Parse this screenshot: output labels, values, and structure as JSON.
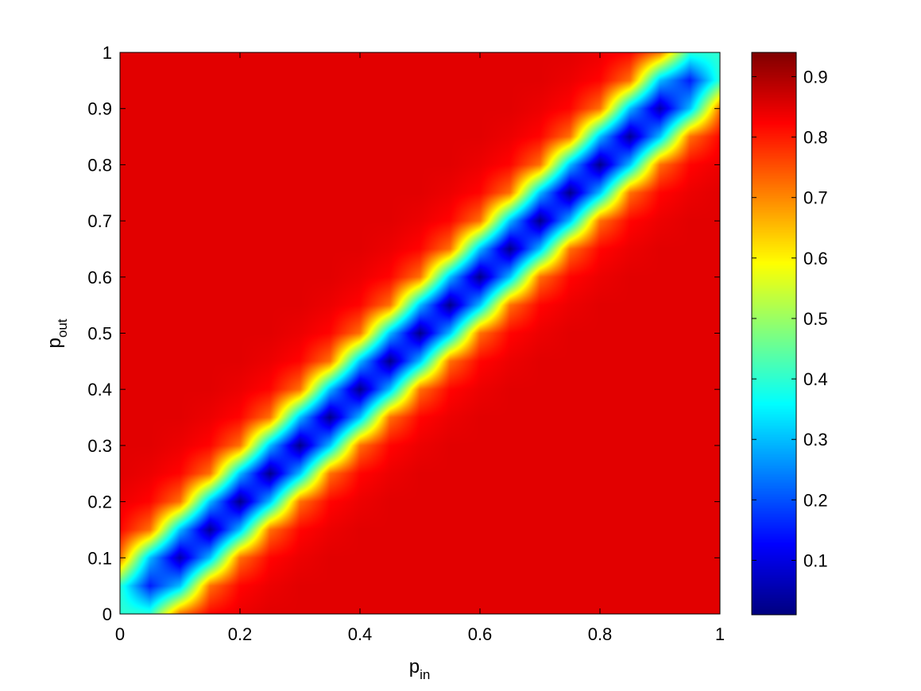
{
  "chart_data": {
    "type": "heatmap",
    "title": "",
    "xlabel": "p",
    "xlabel_sub": "in",
    "ylabel": "p",
    "ylabel_sub": "out",
    "xlim": [
      0,
      1
    ],
    "ylim": [
      0,
      1
    ],
    "x_ticks": [
      0,
      0.2,
      0.4,
      0.6,
      0.8,
      1
    ],
    "x_tick_labels": [
      "0",
      "0.2",
      "0.4",
      "0.6",
      "0.8",
      "1"
    ],
    "y_ticks": [
      0,
      0.1,
      0.2,
      0.3,
      0.4,
      0.5,
      0.6,
      0.7,
      0.8,
      0.9,
      1
    ],
    "y_tick_labels": [
      "0",
      "0.1",
      "0.2",
      "0.3",
      "0.4",
      "0.5",
      "0.6",
      "0.7",
      "0.8",
      "0.9",
      "1"
    ],
    "colormap": "jet",
    "colorbar": {
      "range": [
        0.01,
        0.94
      ],
      "ticks": [
        0.1,
        0.2,
        0.3,
        0.4,
        0.5,
        0.6,
        0.7,
        0.8,
        0.9
      ],
      "tick_labels": [
        "0.1",
        "0.2",
        "0.3",
        "0.4",
        "0.5",
        "0.6",
        "0.7",
        "0.8",
        "0.9"
      ]
    },
    "grid": false,
    "z_description": "approx. 0.85 away from the diagonal p_in = p_out, dropping to about 0.02 along the diagonal; about 0.4 at the corners (0,0) and (1,1)",
    "grid_x": [
      0,
      0.05,
      0.1,
      0.15,
      0.2,
      0.25,
      0.3,
      0.35,
      0.4,
      0.45,
      0.5,
      0.55,
      0.6,
      0.65,
      0.7,
      0.75,
      0.8,
      0.85,
      0.9,
      0.95,
      1
    ],
    "grid_y": [
      0,
      0.05,
      0.1,
      0.15,
      0.2,
      0.25,
      0.3,
      0.35,
      0.4,
      0.45,
      0.5,
      0.55,
      0.6,
      0.65,
      0.7,
      0.75,
      0.8,
      0.85,
      0.9,
      0.95,
      1
    ],
    "z_rows_by_y": [
      [
        0.4,
        0.4,
        0.72,
        0.82,
        0.84,
        0.85,
        0.85,
        0.85,
        0.85,
        0.85,
        0.85,
        0.85,
        0.85,
        0.85,
        0.85,
        0.85,
        0.85,
        0.85,
        0.85,
        0.85,
        0.85
      ],
      [
        0.4,
        0.15,
        0.3,
        0.72,
        0.82,
        0.84,
        0.85,
        0.85,
        0.85,
        0.85,
        0.85,
        0.85,
        0.85,
        0.85,
        0.85,
        0.85,
        0.85,
        0.85,
        0.85,
        0.85,
        0.85
      ],
      [
        0.72,
        0.3,
        0.05,
        0.3,
        0.72,
        0.82,
        0.84,
        0.85,
        0.85,
        0.85,
        0.85,
        0.85,
        0.85,
        0.85,
        0.85,
        0.85,
        0.85,
        0.85,
        0.85,
        0.85,
        0.85
      ],
      [
        0.82,
        0.72,
        0.3,
        0.03,
        0.3,
        0.72,
        0.82,
        0.84,
        0.85,
        0.85,
        0.85,
        0.85,
        0.85,
        0.85,
        0.85,
        0.85,
        0.85,
        0.85,
        0.85,
        0.85,
        0.85
      ],
      [
        0.84,
        0.82,
        0.72,
        0.3,
        0.02,
        0.3,
        0.72,
        0.82,
        0.84,
        0.85,
        0.85,
        0.85,
        0.85,
        0.85,
        0.85,
        0.85,
        0.85,
        0.85,
        0.85,
        0.85,
        0.85
      ],
      [
        0.85,
        0.84,
        0.82,
        0.72,
        0.3,
        0.02,
        0.3,
        0.72,
        0.82,
        0.84,
        0.85,
        0.85,
        0.85,
        0.85,
        0.85,
        0.85,
        0.85,
        0.85,
        0.85,
        0.85,
        0.85
      ],
      [
        0.85,
        0.85,
        0.84,
        0.82,
        0.72,
        0.3,
        0.02,
        0.3,
        0.72,
        0.82,
        0.84,
        0.85,
        0.85,
        0.85,
        0.85,
        0.85,
        0.85,
        0.85,
        0.85,
        0.85,
        0.85
      ],
      [
        0.85,
        0.85,
        0.85,
        0.84,
        0.82,
        0.72,
        0.3,
        0.02,
        0.3,
        0.72,
        0.82,
        0.84,
        0.85,
        0.85,
        0.85,
        0.85,
        0.85,
        0.85,
        0.85,
        0.85,
        0.85
      ],
      [
        0.85,
        0.85,
        0.85,
        0.85,
        0.84,
        0.82,
        0.72,
        0.3,
        0.02,
        0.3,
        0.72,
        0.82,
        0.84,
        0.85,
        0.85,
        0.85,
        0.85,
        0.85,
        0.85,
        0.85,
        0.85
      ],
      [
        0.85,
        0.85,
        0.85,
        0.85,
        0.85,
        0.84,
        0.82,
        0.72,
        0.3,
        0.02,
        0.3,
        0.72,
        0.82,
        0.84,
        0.85,
        0.85,
        0.85,
        0.85,
        0.85,
        0.85,
        0.85
      ],
      [
        0.85,
        0.85,
        0.85,
        0.85,
        0.85,
        0.85,
        0.84,
        0.82,
        0.72,
        0.3,
        0.02,
        0.3,
        0.72,
        0.82,
        0.84,
        0.85,
        0.85,
        0.85,
        0.85,
        0.85,
        0.85
      ],
      [
        0.85,
        0.85,
        0.85,
        0.85,
        0.85,
        0.85,
        0.85,
        0.84,
        0.82,
        0.72,
        0.3,
        0.02,
        0.3,
        0.72,
        0.82,
        0.84,
        0.85,
        0.85,
        0.85,
        0.85,
        0.85
      ],
      [
        0.85,
        0.85,
        0.85,
        0.85,
        0.85,
        0.85,
        0.85,
        0.85,
        0.84,
        0.82,
        0.72,
        0.3,
        0.02,
        0.3,
        0.72,
        0.82,
        0.84,
        0.85,
        0.85,
        0.85,
        0.85
      ],
      [
        0.85,
        0.85,
        0.85,
        0.85,
        0.85,
        0.85,
        0.85,
        0.85,
        0.85,
        0.84,
        0.82,
        0.72,
        0.3,
        0.02,
        0.3,
        0.72,
        0.82,
        0.84,
        0.85,
        0.85,
        0.85
      ],
      [
        0.85,
        0.85,
        0.85,
        0.85,
        0.85,
        0.85,
        0.85,
        0.85,
        0.85,
        0.85,
        0.84,
        0.82,
        0.72,
        0.3,
        0.02,
        0.3,
        0.72,
        0.82,
        0.84,
        0.85,
        0.85
      ],
      [
        0.85,
        0.85,
        0.85,
        0.85,
        0.85,
        0.85,
        0.85,
        0.85,
        0.85,
        0.85,
        0.85,
        0.84,
        0.82,
        0.72,
        0.3,
        0.02,
        0.3,
        0.72,
        0.82,
        0.84,
        0.85
      ],
      [
        0.85,
        0.85,
        0.85,
        0.85,
        0.85,
        0.85,
        0.85,
        0.85,
        0.85,
        0.85,
        0.85,
        0.85,
        0.84,
        0.82,
        0.72,
        0.3,
        0.02,
        0.3,
        0.72,
        0.82,
        0.84
      ],
      [
        0.85,
        0.85,
        0.85,
        0.85,
        0.85,
        0.85,
        0.85,
        0.85,
        0.85,
        0.85,
        0.85,
        0.85,
        0.85,
        0.84,
        0.82,
        0.72,
        0.3,
        0.03,
        0.3,
        0.72,
        0.82
      ],
      [
        0.85,
        0.85,
        0.85,
        0.85,
        0.85,
        0.85,
        0.85,
        0.85,
        0.85,
        0.85,
        0.85,
        0.85,
        0.85,
        0.85,
        0.84,
        0.82,
        0.72,
        0.3,
        0.05,
        0.3,
        0.72
      ],
      [
        0.85,
        0.85,
        0.85,
        0.85,
        0.85,
        0.85,
        0.85,
        0.85,
        0.85,
        0.85,
        0.85,
        0.85,
        0.85,
        0.85,
        0.85,
        0.84,
        0.82,
        0.72,
        0.3,
        0.15,
        0.4
      ],
      [
        0.85,
        0.85,
        0.85,
        0.85,
        0.85,
        0.85,
        0.85,
        0.85,
        0.85,
        0.85,
        0.85,
        0.85,
        0.85,
        0.85,
        0.85,
        0.85,
        0.84,
        0.82,
        0.72,
        0.4,
        0.4
      ]
    ]
  }
}
